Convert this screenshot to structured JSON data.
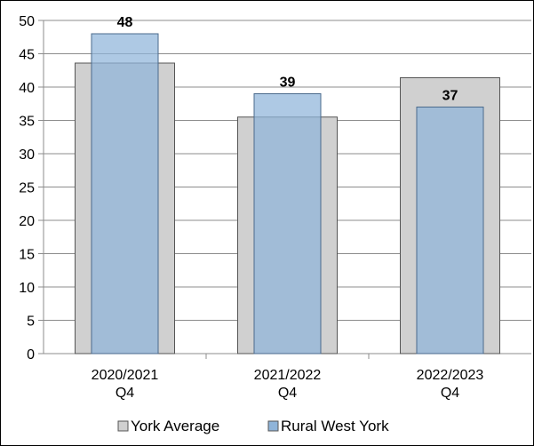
{
  "chart_data": {
    "type": "bar",
    "categories": [
      "2020/2021\nQ4",
      "2021/2022\nQ4",
      "2022/2023\nQ4"
    ],
    "series": [
      {
        "name": "York Average",
        "values": [
          43.6,
          35.5,
          41.4
        ],
        "color": "#d0d0d0"
      },
      {
        "name": "Rural West York",
        "values": [
          48,
          39,
          37
        ],
        "color": "#8fb4d9"
      }
    ],
    "data_labels": [
      "48",
      "39",
      "37"
    ],
    "ylim": [
      0,
      50
    ],
    "yticks": [
      0,
      5,
      10,
      15,
      20,
      25,
      30,
      35,
      40,
      45,
      50
    ],
    "grid": true,
    "legend_position": "bottom",
    "title": "",
    "xlabel": "",
    "ylabel": ""
  }
}
